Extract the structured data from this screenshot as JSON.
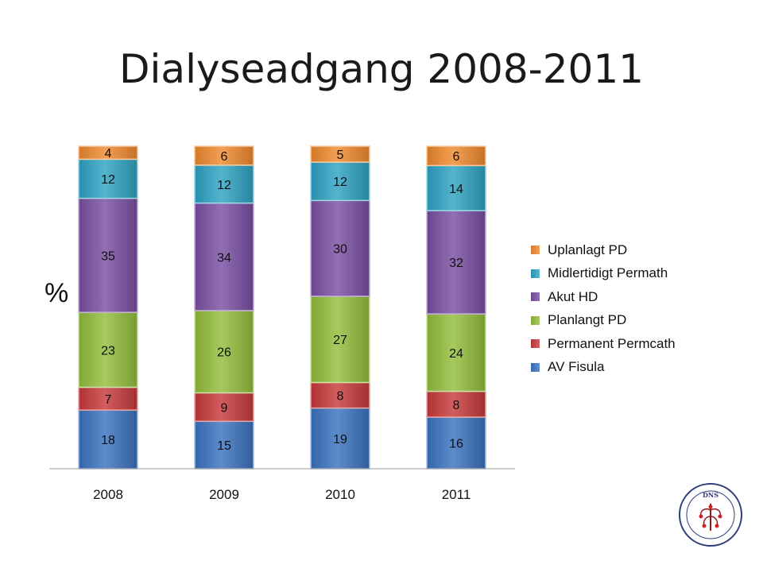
{
  "page": {
    "title": "Dialyseadgang 2008-2011"
  },
  "chart_data": {
    "type": "bar",
    "stacked": true,
    "ylabel": "%",
    "categories": [
      "2008",
      "2009",
      "2010",
      "2011"
    ],
    "legend_position": "right",
    "series": [
      {
        "name": "AV Fisula",
        "color": "#3B73C0",
        "values": [
          18,
          15,
          19,
          16
        ]
      },
      {
        "name": "Permanent Permcath",
        "color": "#C8393B",
        "values": [
          7,
          9,
          8,
          8
        ]
      },
      {
        "name": "Planlangt PD",
        "color": "#93BE3C",
        "values": [
          23,
          26,
          27,
          24
        ]
      },
      {
        "name": "Akut HD",
        "color": "#7A4FA3",
        "values": [
          35,
          34,
          30,
          32
        ]
      },
      {
        "name": "Midlertidigt Permath",
        "color": "#2EA3C3",
        "values": [
          12,
          12,
          12,
          14
        ]
      },
      {
        "name": "Uplanlagt PD",
        "color": "#F08A2E",
        "values": [
          4,
          6,
          5,
          6
        ]
      }
    ]
  }
}
